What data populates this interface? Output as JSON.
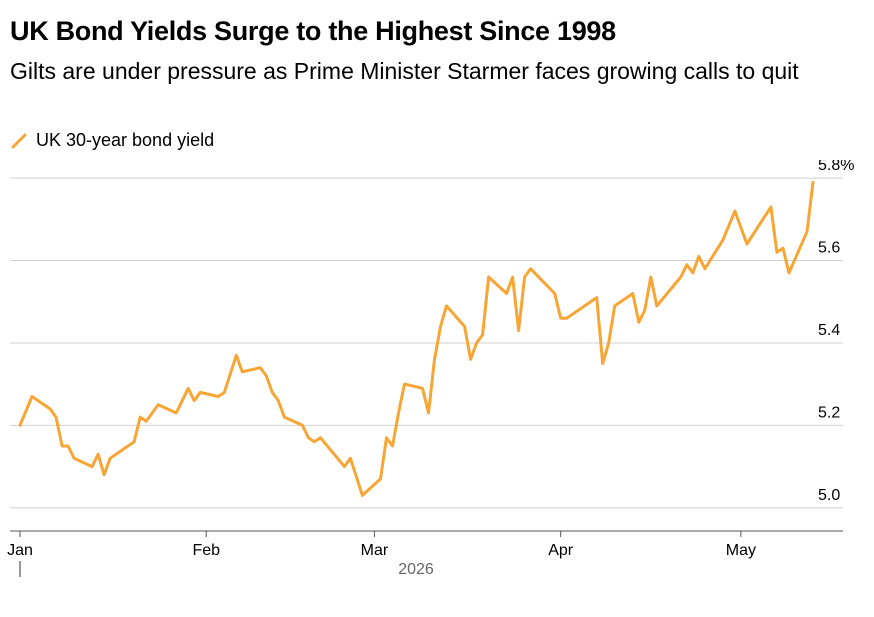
{
  "colors": {
    "series": "#F7A535",
    "grid": "#d0d0d0",
    "axis": "#555555"
  },
  "chart_data": {
    "type": "line",
    "title": "UK Bond Yields Surge to the Highest Since 1998",
    "subtitle": "Gilts are under pressure as Prime Minister Starmer faces growing calls to quit",
    "legend": {
      "position": "top-left",
      "icon": "diagonal-line-icon"
    },
    "x_axis": {
      "type": "date",
      "range": [
        "2026-01-01",
        "2026-05-14"
      ],
      "ticks": [
        {
          "date": "2026-01-01",
          "label": "Jan"
        },
        {
          "date": "2026-02-01",
          "label": "Feb"
        },
        {
          "date": "2026-03-01",
          "label": "Mar"
        },
        {
          "date": "2026-04-01",
          "label": "Apr"
        },
        {
          "date": "2026-05-01",
          "label": "May"
        }
      ],
      "year_label": "2026"
    },
    "y_axis": {
      "position": "right",
      "ylim": [
        4.98,
        5.81
      ],
      "ticks": [
        {
          "value": 5.0,
          "label": "5.0"
        },
        {
          "value": 5.2,
          "label": "5.2"
        },
        {
          "value": 5.4,
          "label": "5.4"
        },
        {
          "value": 5.6,
          "label": "5.6"
        },
        {
          "value": 5.8,
          "label": "5.8%"
        }
      ],
      "grid": true
    },
    "series": [
      {
        "name": "UK 30-year bond yield",
        "points": [
          [
            "2026-01-01",
            5.2
          ],
          [
            "2026-01-03",
            5.27
          ],
          [
            "2026-01-06",
            5.24
          ],
          [
            "2026-01-07",
            5.22
          ],
          [
            "2026-01-08",
            5.15
          ],
          [
            "2026-01-09",
            5.15
          ],
          [
            "2026-01-10",
            5.12
          ],
          [
            "2026-01-13",
            5.1
          ],
          [
            "2026-01-14",
            5.13
          ],
          [
            "2026-01-15",
            5.08
          ],
          [
            "2026-01-16",
            5.12
          ],
          [
            "2026-01-20",
            5.16
          ],
          [
            "2026-01-21",
            5.22
          ],
          [
            "2026-01-22",
            5.21
          ],
          [
            "2026-01-24",
            5.25
          ],
          [
            "2026-01-27",
            5.23
          ],
          [
            "2026-01-29",
            5.29
          ],
          [
            "2026-01-30",
            5.26
          ],
          [
            "2026-01-31",
            5.28
          ],
          [
            "2026-02-03",
            5.27
          ],
          [
            "2026-02-04",
            5.28
          ],
          [
            "2026-02-06",
            5.37
          ],
          [
            "2026-02-07",
            5.33
          ],
          [
            "2026-02-10",
            5.34
          ],
          [
            "2026-02-11",
            5.32
          ],
          [
            "2026-02-12",
            5.28
          ],
          [
            "2026-02-13",
            5.26
          ],
          [
            "2026-02-14",
            5.22
          ],
          [
            "2026-02-17",
            5.2
          ],
          [
            "2026-02-18",
            5.17
          ],
          [
            "2026-02-19",
            5.16
          ],
          [
            "2026-02-20",
            5.17
          ],
          [
            "2026-02-24",
            5.1
          ],
          [
            "2026-02-25",
            5.12
          ],
          [
            "2026-02-27",
            5.03
          ],
          [
            "2026-03-02",
            5.07
          ],
          [
            "2026-03-03",
            5.17
          ],
          [
            "2026-03-04",
            5.15
          ],
          [
            "2026-03-05",
            5.23
          ],
          [
            "2026-03-06",
            5.3
          ],
          [
            "2026-03-09",
            5.29
          ],
          [
            "2026-03-10",
            5.23
          ],
          [
            "2026-03-11",
            5.36
          ],
          [
            "2026-03-12",
            5.44
          ],
          [
            "2026-03-13",
            5.49
          ],
          [
            "2026-03-16",
            5.44
          ],
          [
            "2026-03-17",
            5.36
          ],
          [
            "2026-03-18",
            5.4
          ],
          [
            "2026-03-19",
            5.42
          ],
          [
            "2026-03-20",
            5.56
          ],
          [
            "2026-03-23",
            5.52
          ],
          [
            "2026-03-24",
            5.56
          ],
          [
            "2026-03-25",
            5.43
          ],
          [
            "2026-03-26",
            5.56
          ],
          [
            "2026-03-27",
            5.58
          ],
          [
            "2026-03-31",
            5.52
          ],
          [
            "2026-04-01",
            5.46
          ],
          [
            "2026-04-02",
            5.46
          ],
          [
            "2026-04-07",
            5.51
          ],
          [
            "2026-04-08",
            5.35
          ],
          [
            "2026-04-09",
            5.4
          ],
          [
            "2026-04-10",
            5.49
          ],
          [
            "2026-04-13",
            5.52
          ],
          [
            "2026-04-14",
            5.45
          ],
          [
            "2026-04-15",
            5.48
          ],
          [
            "2026-04-16",
            5.56
          ],
          [
            "2026-04-17",
            5.49
          ],
          [
            "2026-04-21",
            5.56
          ],
          [
            "2026-04-22",
            5.59
          ],
          [
            "2026-04-23",
            5.57
          ],
          [
            "2026-04-24",
            5.61
          ],
          [
            "2026-04-25",
            5.58
          ],
          [
            "2026-04-28",
            5.65
          ],
          [
            "2026-04-30",
            5.72
          ],
          [
            "2026-05-02",
            5.64
          ],
          [
            "2026-05-06",
            5.73
          ],
          [
            "2026-05-07",
            5.62
          ],
          [
            "2026-05-08",
            5.63
          ],
          [
            "2026-05-09",
            5.57
          ],
          [
            "2026-05-12",
            5.67
          ],
          [
            "2026-05-13",
            5.79
          ]
        ]
      }
    ]
  }
}
